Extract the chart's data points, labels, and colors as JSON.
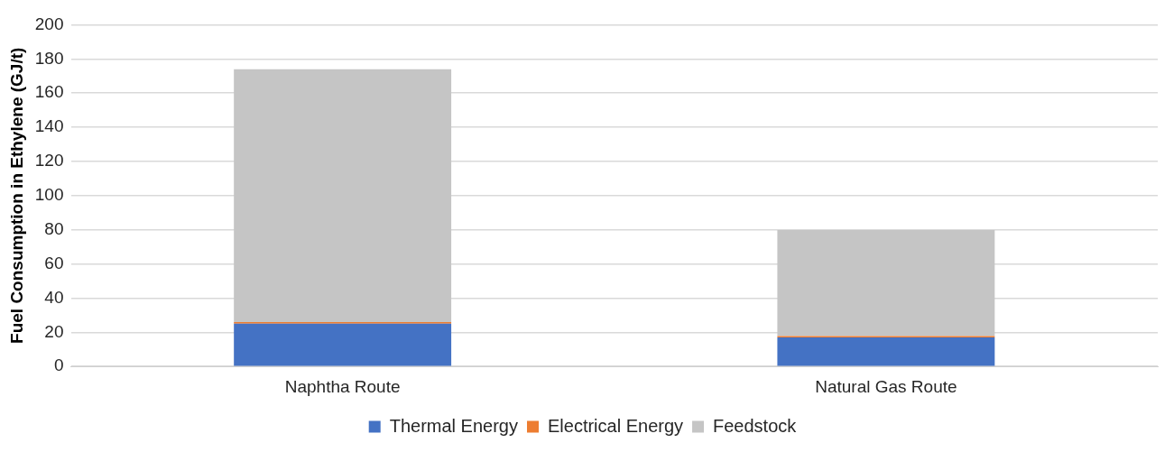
{
  "chart_data": {
    "type": "bar",
    "stacked": true,
    "ylabel": "Fuel Consumption in Ethylene (GJ/t)",
    "categories": [
      "Naphtha Route",
      "Natural Gas Route"
    ],
    "series": [
      {
        "name": "Thermal Energy",
        "color": "#4472c4",
        "values": [
          25,
          17
        ]
      },
      {
        "name": "Electrical Energy",
        "color": "#ed7d31",
        "values": [
          1,
          0.8
        ]
      },
      {
        "name": "Feedstock",
        "color": "#c5c5c5",
        "values": [
          148,
          62
        ]
      }
    ],
    "ylim": [
      0,
      200
    ],
    "yticks": [
      0,
      20,
      40,
      60,
      80,
      100,
      120,
      140,
      160,
      180,
      200
    ],
    "grid": "y",
    "legend": "bottom"
  }
}
